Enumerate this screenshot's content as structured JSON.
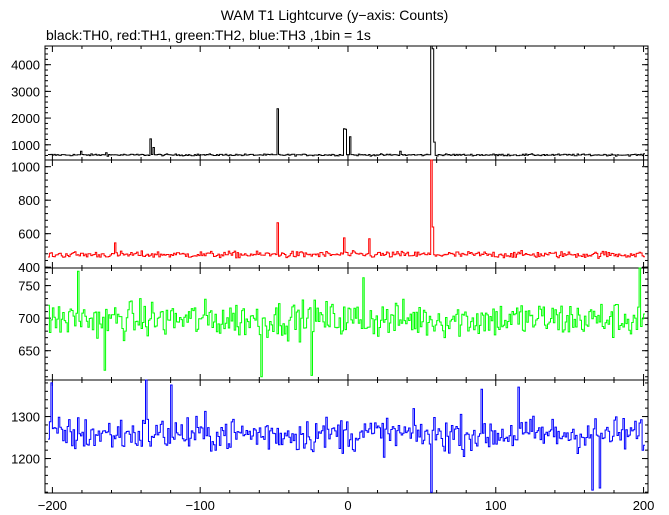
{
  "chart_data": {
    "type": "line",
    "title": "WAM T1 Lightcurve (y−axis: Counts)",
    "subtitle": "black:TH0, red:TH1, green:TH2, blue:TH3 ,1bin = 1s",
    "xlim": [
      -205,
      203
    ],
    "x_ticks": [
      -200,
      -100,
      0,
      100,
      200
    ],
    "x_tick_labels": [
      "−200",
      "−100",
      "0",
      "100",
      "200"
    ],
    "grid": false,
    "panels": [
      {
        "series_name": "TH0",
        "color": "#000000",
        "ylim": [
          430,
          4700
        ],
        "y_ticks": [
          1000,
          2000,
          3000,
          4000
        ],
        "baseline": 620,
        "noise": 25,
        "spikes": [
          {
            "x": -181,
            "y": 760
          },
          {
            "x": -164,
            "y": 700
          },
          {
            "x": -134,
            "y": 1220
          },
          {
            "x": -132,
            "y": 900
          },
          {
            "x": -48,
            "y": 2350
          },
          {
            "x": -3,
            "y": 1600
          },
          {
            "x": -2,
            "y": 1580
          },
          {
            "x": 1,
            "y": 1300
          },
          {
            "x": 35,
            "y": 760
          },
          {
            "x": 56,
            "y": 4700
          },
          {
            "x": 57,
            "y": 4600
          },
          {
            "x": 57.5,
            "y": 1100
          }
        ]
      },
      {
        "series_name": "TH1",
        "color": "#ff0000",
        "ylim": [
          395,
          1040
        ],
        "y_ticks": [
          400,
          600,
          800,
          1000
        ],
        "baseline": 475,
        "noise": 14,
        "spikes": [
          {
            "x": -48,
            "y": 665
          },
          {
            "x": -158,
            "y": 545
          },
          {
            "x": -3,
            "y": 575
          },
          {
            "x": 14,
            "y": 570
          },
          {
            "x": 56,
            "y": 1040
          },
          {
            "x": 56.5,
            "y": 1000
          },
          {
            "x": 57,
            "y": 640
          }
        ]
      },
      {
        "series_name": "TH2",
        "color": "#00ff00",
        "ylim": [
          605,
          777
        ],
        "y_ticks": [
          650,
          700,
          750
        ],
        "baseline": 698,
        "noise": 20,
        "spikes": [
          {
            "x": -183,
            "y": 772
          },
          {
            "x": -59,
            "y": 610
          },
          {
            "x": -25,
            "y": 612
          },
          {
            "x": 197,
            "y": 777
          },
          {
            "x": 10,
            "y": 762
          },
          {
            "x": -165,
            "y": 620
          }
        ]
      },
      {
        "series_name": "TH3",
        "color": "#0000ff",
        "ylim": [
          1118,
          1387
        ],
        "y_ticks": [
          1200,
          1300
        ],
        "baseline": 1258,
        "noise": 30,
        "spikes": [
          {
            "x": -201,
            "y": 1380
          },
          {
            "x": -137,
            "y": 1387
          },
          {
            "x": -120,
            "y": 1375
          },
          {
            "x": 56,
            "y": 1120
          },
          {
            "x": 90,
            "y": 1365
          },
          {
            "x": 165,
            "y": 1125
          },
          {
            "x": 170,
            "y": 1130
          },
          {
            "x": 115,
            "y": 1370
          }
        ]
      }
    ]
  }
}
